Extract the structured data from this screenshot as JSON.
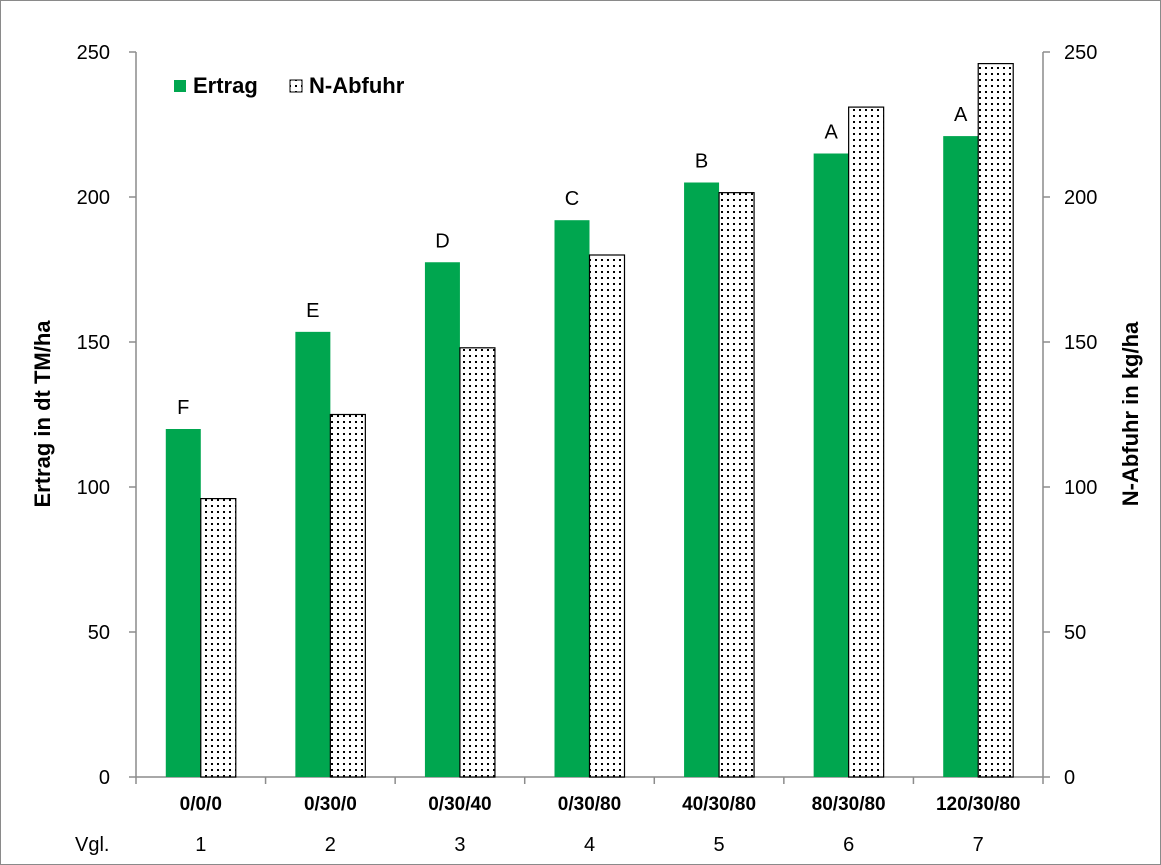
{
  "chart_data": {
    "type": "bar",
    "categories": [
      "0/0/0",
      "0/30/0",
      "0/30/40",
      "0/30/80",
      "40/30/80",
      "80/30/80",
      "120/30/80"
    ],
    "vgl_label": "Vgl.",
    "vgl_numbers": [
      "1",
      "2",
      "3",
      "4",
      "5",
      "6",
      "7"
    ],
    "series": [
      {
        "name": "Ertrag",
        "axis": "left",
        "values": [
          120,
          153.5,
          177.5,
          192,
          205,
          215,
          221
        ],
        "color": "#00a64f"
      },
      {
        "name": "N-Abfuhr",
        "axis": "right",
        "values": [
          96,
          125,
          148,
          180,
          201.5,
          231,
          246
        ],
        "pattern": "dotted"
      }
    ],
    "significance_labels": [
      "F",
      "E",
      "D",
      "C",
      "B",
      "A",
      "A"
    ],
    "ylabel_left": "Ertrag in dt TM/ha",
    "ylabel_right": "N-Abfuhr in kg/ha",
    "ylim_left": [
      0,
      250
    ],
    "ylim_right": [
      0,
      250
    ],
    "yticks_left": [
      0,
      50,
      100,
      150,
      200,
      250
    ],
    "yticks_right": [
      0,
      50,
      100,
      150,
      200,
      250
    ],
    "grid": false,
    "legend_position": "top-left"
  }
}
